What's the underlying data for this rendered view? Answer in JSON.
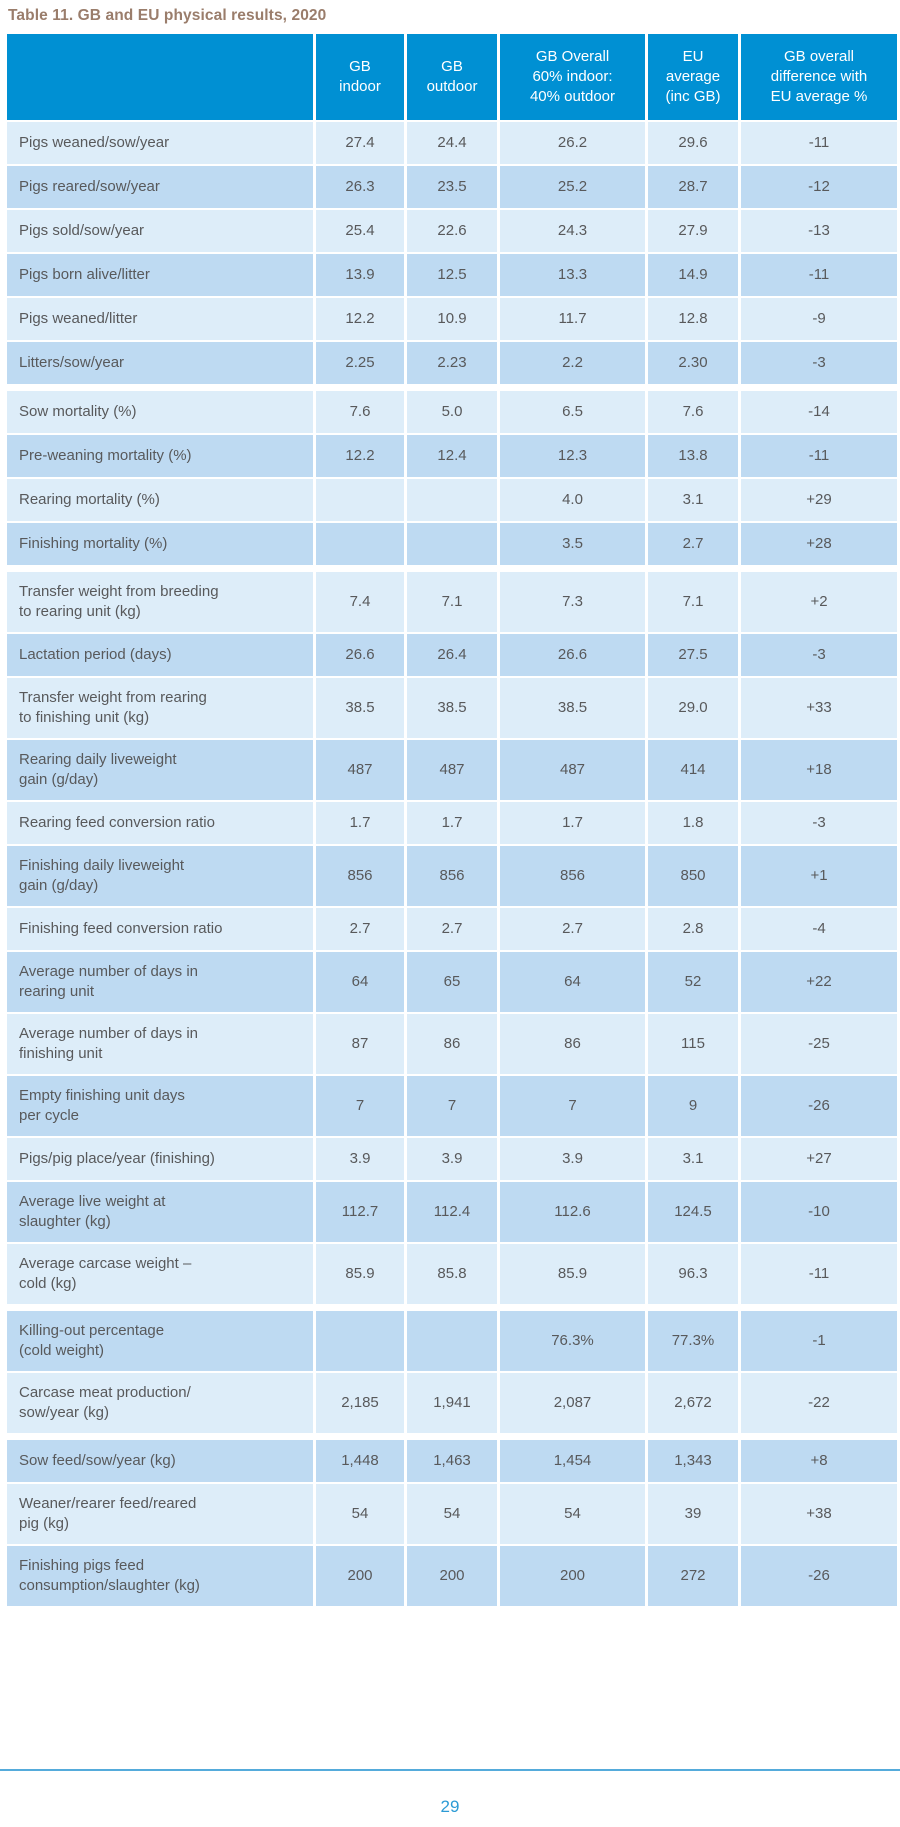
{
  "title": "Table 11. GB and EU physical results, 2020",
  "page_number": "29",
  "colors": {
    "header_bg": "#0090d3",
    "row_light": "#ddedf9",
    "row_dark": "#bedaf2",
    "cell_text": "#58595b",
    "title_text": "#9a7d6b",
    "page_number_text": "#2d9bd5",
    "footer_rule": "#55abdb"
  },
  "table": {
    "header": [
      "",
      "GB\nindoor",
      "GB\noutdoor",
      "GB Overall\n60% indoor:\n40% outdoor",
      "EU\naverage\n(inc GB)",
      "GB overall\ndifference with\nEU average %"
    ],
    "groups": [
      {
        "rows": [
          {
            "label": "Pigs weaned/sow/year",
            "values": [
              "27.4",
              "24.4",
              "26.2",
              "29.6",
              "-11"
            ]
          },
          {
            "label": "Pigs reared/sow/year",
            "values": [
              "26.3",
              "23.5",
              "25.2",
              "28.7",
              "-12"
            ]
          },
          {
            "label": "Pigs sold/sow/year",
            "values": [
              "25.4",
              "22.6",
              "24.3",
              "27.9",
              "-13"
            ]
          },
          {
            "label": "Pigs born alive/litter",
            "values": [
              "13.9",
              "12.5",
              "13.3",
              "14.9",
              "-11"
            ]
          },
          {
            "label": "Pigs weaned/litter",
            "values": [
              "12.2",
              "10.9",
              "11.7",
              "12.8",
              "-9"
            ]
          },
          {
            "label": "Litters/sow/year",
            "values": [
              "2.25",
              "2.23",
              "2.2",
              "2.30",
              "-3"
            ]
          }
        ]
      },
      {
        "rows": [
          {
            "label": "Sow mortality (%)",
            "values": [
              "7.6",
              "5.0",
              "6.5",
              "7.6",
              "-14"
            ]
          },
          {
            "label": "Pre-weaning mortality (%)",
            "values": [
              "12.2",
              "12.4",
              "12.3",
              "13.8",
              "-11"
            ]
          },
          {
            "label": "Rearing mortality (%)",
            "values": [
              "",
              "",
              "4.0",
              "3.1",
              "+29"
            ]
          },
          {
            "label": "Finishing mortality (%)",
            "values": [
              "",
              "",
              "3.5",
              "2.7",
              "+28"
            ]
          }
        ]
      },
      {
        "rows": [
          {
            "label": "Transfer weight from breeding\nto rearing unit (kg)",
            "values": [
              "7.4",
              "7.1",
              "7.3",
              "7.1",
              "+2"
            ]
          },
          {
            "label": "Lactation period (days)",
            "values": [
              "26.6",
              "26.4",
              "26.6",
              "27.5",
              "-3"
            ]
          },
          {
            "label": "Transfer weight from rearing\nto finishing unit (kg)",
            "values": [
              "38.5",
              "38.5",
              "38.5",
              "29.0",
              "+33"
            ]
          },
          {
            "label": "Rearing daily liveweight\ngain (g/day)",
            "values": [
              "487",
              "487",
              "487",
              "414",
              "+18"
            ]
          },
          {
            "label": "Rearing feed conversion ratio",
            "values": [
              "1.7",
              "1.7",
              "1.7",
              "1.8",
              "-3"
            ]
          },
          {
            "label": "Finishing daily liveweight\ngain (g/day)",
            "values": [
              "856",
              "856",
              "856",
              "850",
              "+1"
            ]
          },
          {
            "label": "Finishing feed conversion ratio",
            "values": [
              "2.7",
              "2.7",
              "2.7",
              "2.8",
              "-4"
            ]
          },
          {
            "label": "Average number of days in\nrearing unit",
            "values": [
              "64",
              "65",
              "64",
              "52",
              "+22"
            ]
          },
          {
            "label": "Average number of days in\nfinishing unit",
            "values": [
              "87",
              "86",
              "86",
              "115",
              "-25"
            ]
          },
          {
            "label": "Empty finishing unit days\nper cycle",
            "values": [
              "7",
              "7",
              "7",
              "9",
              "-26"
            ]
          },
          {
            "label": "Pigs/pig place/year (finishing)",
            "values": [
              "3.9",
              "3.9",
              "3.9",
              "3.1",
              "+27"
            ]
          },
          {
            "label": "Average live weight at\nslaughter (kg)",
            "values": [
              "112.7",
              "112.4",
              "112.6",
              "124.5",
              "-10"
            ]
          },
          {
            "label": "Average carcase weight –\ncold (kg)",
            "values": [
              "85.9",
              "85.8",
              "85.9",
              "96.3",
              "-11"
            ]
          }
        ]
      },
      {
        "rows": [
          {
            "label": "Killing-out percentage\n(cold weight)",
            "values": [
              "",
              "",
              "76.3%",
              "77.3%",
              "-1"
            ]
          },
          {
            "label": "Carcase meat production/\nsow/year (kg)",
            "values": [
              "2,185",
              "1,941",
              "2,087",
              "2,672",
              "-22"
            ]
          }
        ]
      },
      {
        "rows": [
          {
            "label": "Sow feed/sow/year (kg)",
            "values": [
              "1,448",
              "1,463",
              "1,454",
              "1,343",
              "+8"
            ]
          },
          {
            "label": "Weaner/rearer feed/reared\npig (kg)",
            "values": [
              "54",
              "54",
              "54",
              "39",
              "+38"
            ]
          },
          {
            "label": "Finishing pigs feed\nconsumption/slaughter (kg)",
            "values": [
              "200",
              "200",
              "200",
              "272",
              "-26"
            ]
          }
        ]
      }
    ]
  }
}
